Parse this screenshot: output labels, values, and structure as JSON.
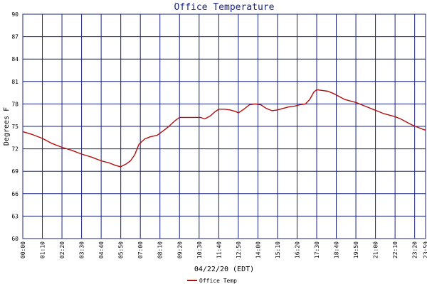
{
  "chart_data": {
    "type": "line",
    "title": "Office Temperature",
    "xlabel": "04/22/20 (EDT)",
    "ylabel": "Degrees F",
    "ylim": [
      60,
      90
    ],
    "yticks": [
      60,
      63,
      66,
      69,
      72,
      75,
      78,
      81,
      84,
      87,
      90
    ],
    "xticks": [
      "00:00",
      "01:10",
      "02:20",
      "03:30",
      "04:40",
      "05:50",
      "07:00",
      "08:10",
      "09:20",
      "10:30",
      "11:40",
      "12:50",
      "14:00",
      "15:10",
      "16:20",
      "17:30",
      "18:40",
      "19:50",
      "21:00",
      "22:10",
      "23:20",
      "23:59"
    ],
    "grid": true,
    "legend_position": "bottom-left",
    "colors": {
      "series": "#b01010",
      "grid": "#1a237e",
      "axis": "#000000",
      "text": "#000000",
      "title": "#1a237e"
    },
    "series": [
      {
        "name": "Office Temp",
        "x": [
          "00:00",
          "00:35",
          "01:10",
          "01:45",
          "02:20",
          "02:55",
          "03:30",
          "04:05",
          "04:40",
          "05:10",
          "05:30",
          "05:50",
          "06:10",
          "06:25",
          "06:40",
          "06:55",
          "07:15",
          "07:35",
          "08:00",
          "08:25",
          "08:45",
          "09:05",
          "09:20",
          "09:45",
          "10:10",
          "10:35",
          "10:50",
          "11:10",
          "11:25",
          "11:40",
          "12:00",
          "12:20",
          "12:40",
          "12:50",
          "13:10",
          "13:30",
          "13:50",
          "14:10",
          "14:30",
          "14:50",
          "15:10",
          "15:30",
          "15:50",
          "16:10",
          "16:30",
          "16:50",
          "17:05",
          "17:20",
          "17:30",
          "17:50",
          "18:10",
          "18:30",
          "18:50",
          "19:10",
          "19:30",
          "19:50",
          "20:10",
          "20:30",
          "20:50",
          "21:10",
          "21:30",
          "21:50",
          "22:10",
          "22:30",
          "22:50",
          "23:10",
          "23:30",
          "23:50",
          "23:59"
        ],
        "values": [
          74.3,
          73.9,
          73.4,
          72.7,
          72.2,
          71.8,
          71.3,
          70.9,
          70.4,
          70.1,
          69.8,
          69.6,
          70.0,
          70.4,
          71.2,
          72.6,
          73.3,
          73.6,
          73.8,
          74.5,
          75.1,
          75.8,
          76.2,
          76.2,
          76.2,
          76.2,
          76.0,
          76.4,
          76.9,
          77.3,
          77.3,
          77.2,
          77.0,
          76.8,
          77.3,
          77.9,
          78.0,
          77.9,
          77.4,
          77.1,
          77.2,
          77.4,
          77.6,
          77.7,
          77.9,
          78.0,
          78.6,
          79.6,
          79.9,
          79.8,
          79.7,
          79.4,
          79.0,
          78.6,
          78.4,
          78.2,
          77.9,
          77.6,
          77.3,
          77.0,
          76.7,
          76.5,
          76.3,
          76.0,
          75.6,
          75.2,
          74.9,
          74.6,
          74.5
        ]
      }
    ]
  }
}
